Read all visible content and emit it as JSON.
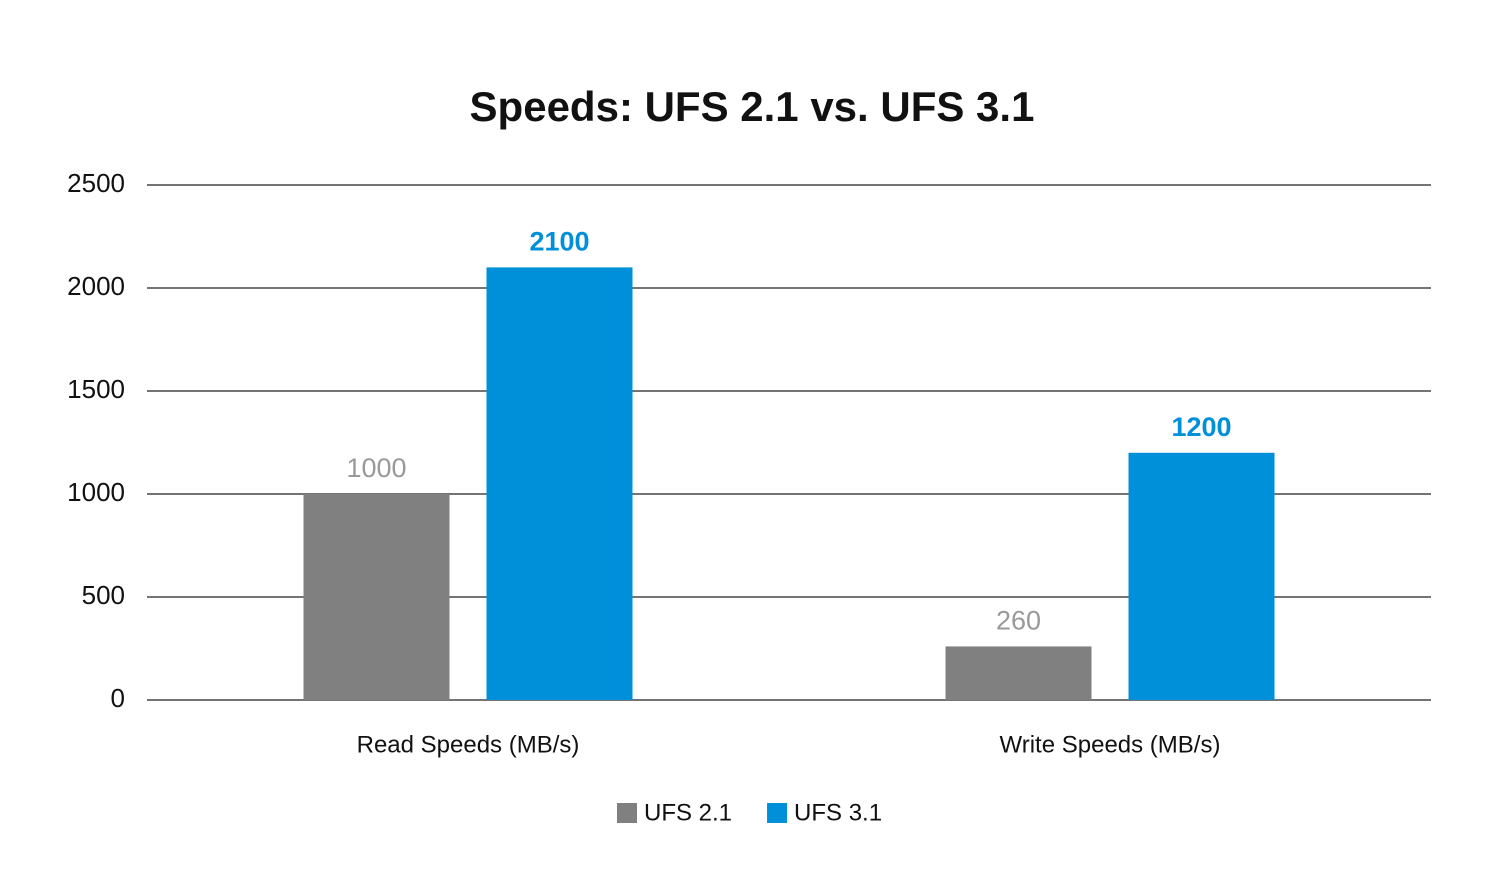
{
  "chart_data": {
    "type": "bar",
    "title": "Speeds: UFS 2.1 vs. UFS 3.1",
    "categories": [
      "Read Speeds (MB/s)",
      "Write Speeds (MB/s)"
    ],
    "series": [
      {
        "name": "UFS 2.1",
        "color": "#808080",
        "values": [
          1000,
          260
        ]
      },
      {
        "name": "UFS 3.1",
        "color": "#0090da",
        "values": [
          2100,
          1200
        ]
      }
    ],
    "ylim": [
      0,
      2500
    ],
    "yticks": [
      0,
      500,
      1000,
      1500,
      2000,
      2500
    ],
    "grid": true,
    "legend": "bottom"
  }
}
